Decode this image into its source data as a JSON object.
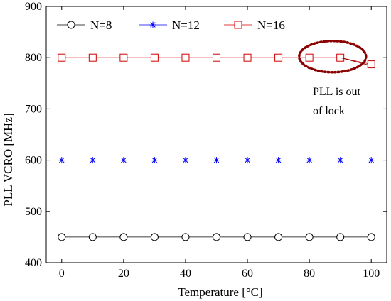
{
  "chart_data": {
    "type": "line",
    "title": "",
    "xlabel": "Temperature [°C]",
    "ylabel": "PLL VCRO [MHz]",
    "xlim": [
      -5,
      105
    ],
    "ylim": [
      400,
      900
    ],
    "x": [
      0,
      10,
      20,
      30,
      40,
      50,
      60,
      70,
      80,
      90,
      100
    ],
    "xticks": [
      0,
      20,
      40,
      60,
      80,
      100
    ],
    "yticks": [
      400,
      500,
      600,
      700,
      800,
      900
    ],
    "grid": false,
    "legend_position": "top-left",
    "series": [
      {
        "name": "N=8",
        "marker": "circle",
        "color": "#000000",
        "values": [
          450,
          450,
          450,
          450,
          450,
          450,
          450,
          450,
          450,
          450,
          450
        ]
      },
      {
        "name": "N=12",
        "marker": "star",
        "color": "#0000ff",
        "values": [
          600,
          600,
          600,
          600,
          600,
          600,
          600,
          600,
          600,
          600,
          600
        ]
      },
      {
        "name": "N=16",
        "marker": "square",
        "color": "#d00000",
        "values": [
          800,
          800,
          800,
          800,
          800,
          800,
          800,
          800,
          800,
          800,
          787
        ]
      }
    ],
    "annotation": {
      "lines": [
        "PLL is out",
        "of lock"
      ],
      "target": {
        "x": 100,
        "y": 787
      },
      "highlight_color": "#8b0000"
    }
  }
}
